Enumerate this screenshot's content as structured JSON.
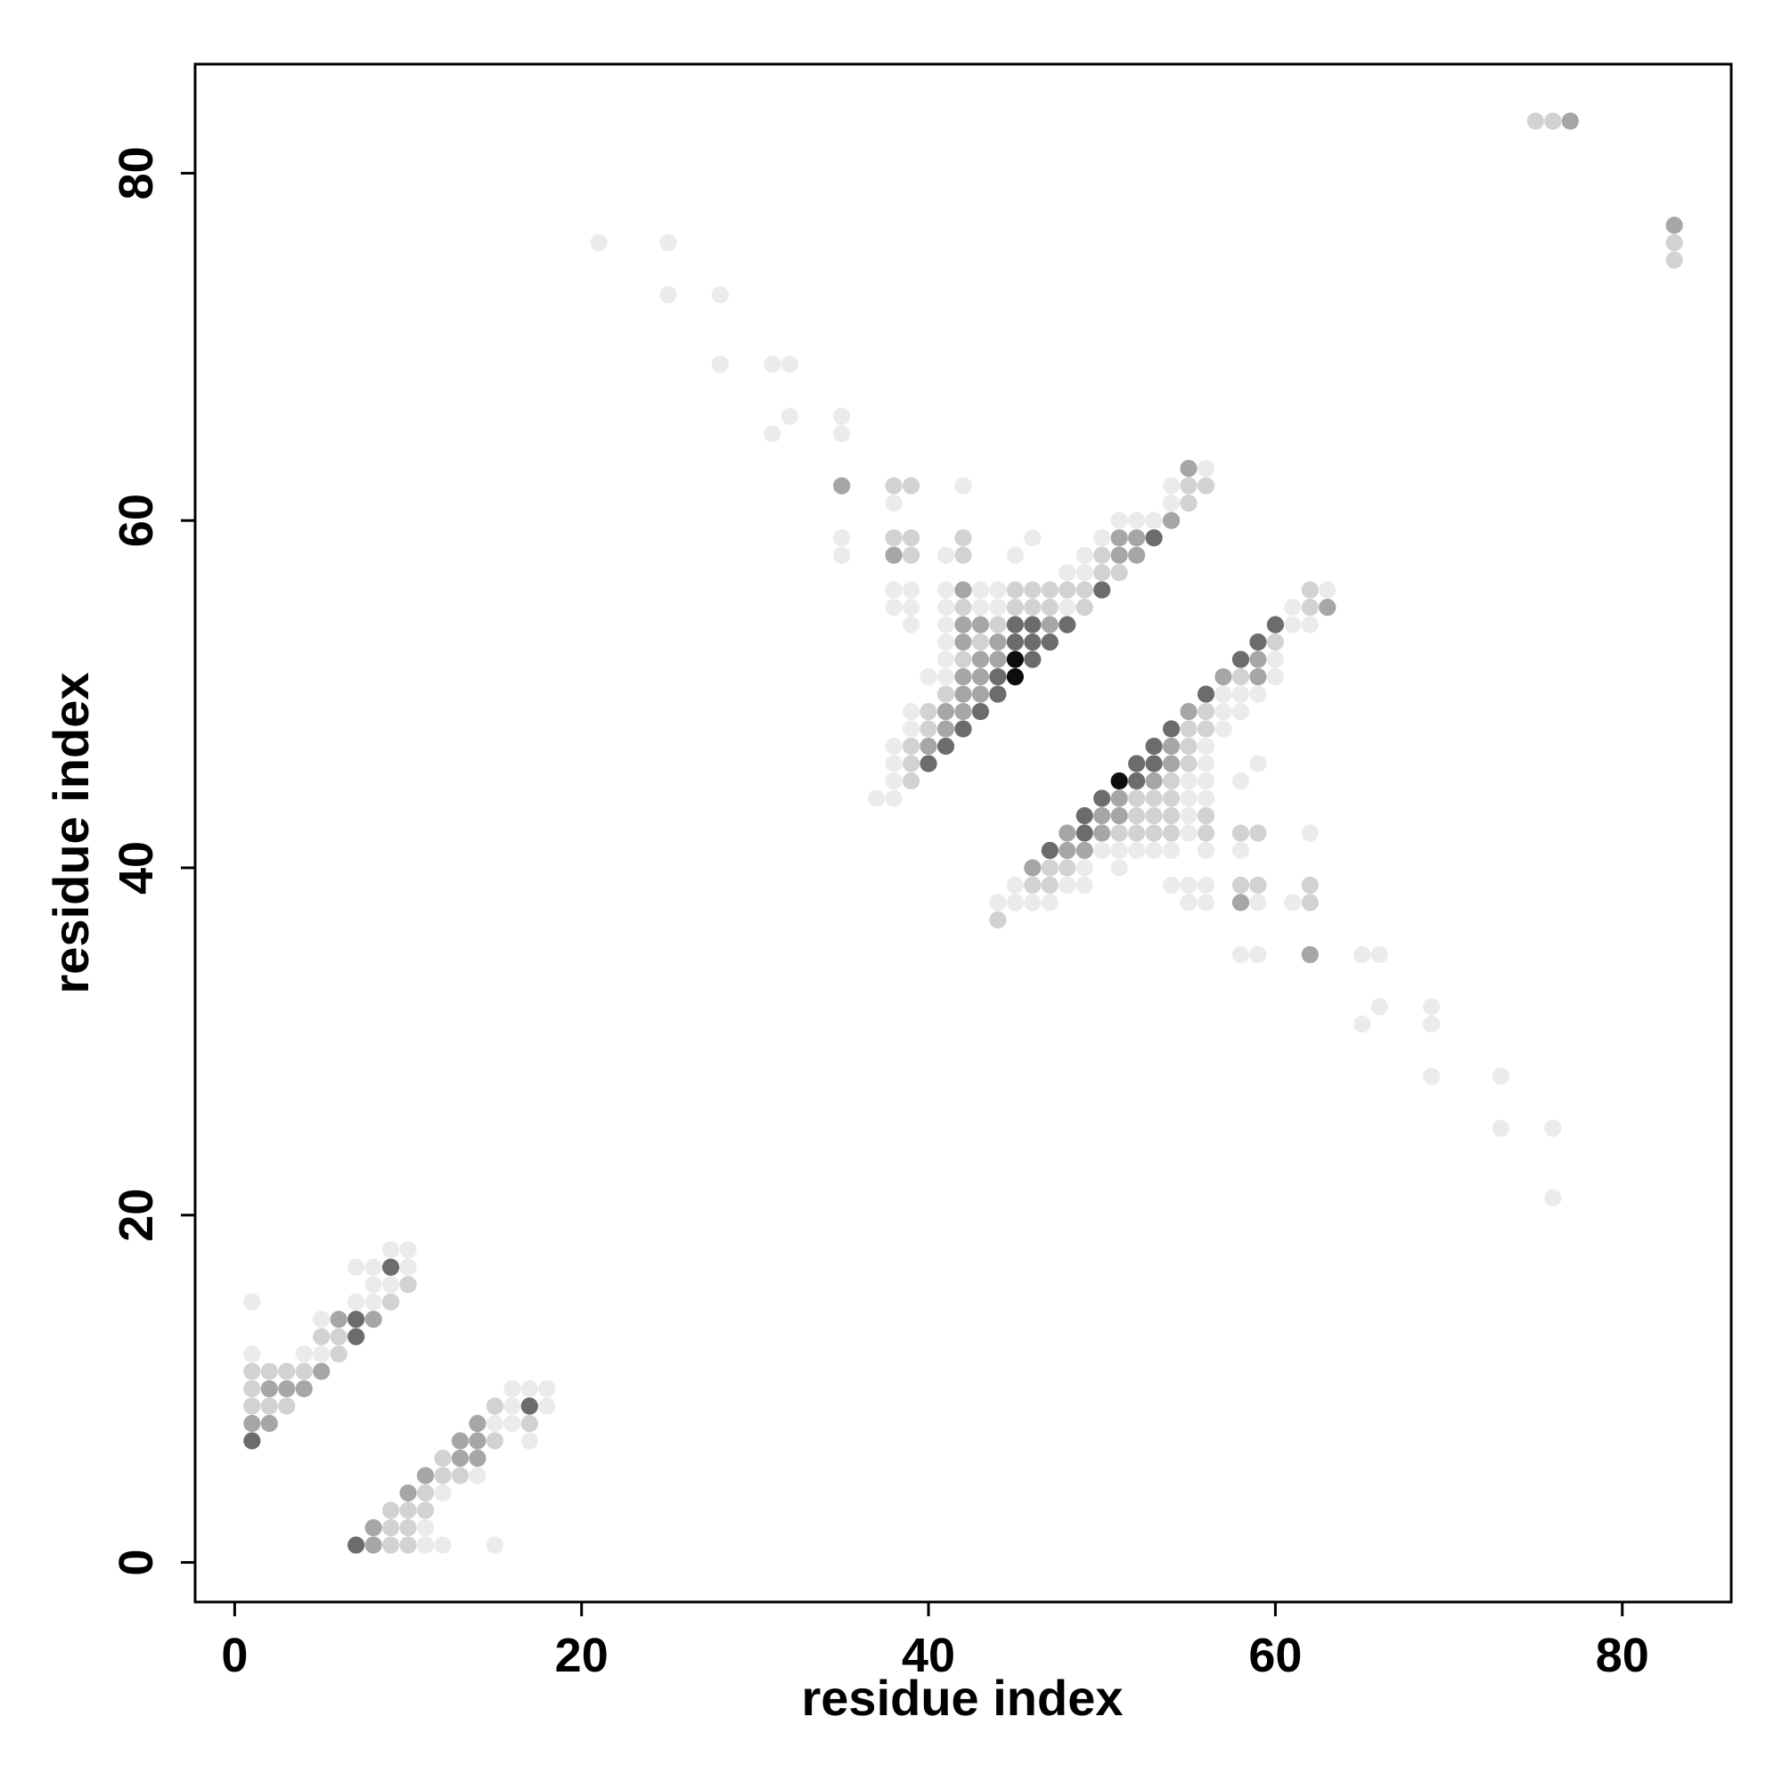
{
  "chart_data": {
    "type": "scatter",
    "x_label": "residue index",
    "y_label": "residue index",
    "xlim": [
      -2.28,
      86.28
    ],
    "ylim": [
      -2.28,
      86.28
    ],
    "xticks": [
      0,
      20,
      40,
      60,
      80
    ],
    "yticks": [
      0,
      20,
      40,
      60,
      80
    ],
    "series": [
      {
        "color": "#ebebeb",
        "x": [
          21,
          25,
          25,
          28,
          28,
          31,
          32,
          31,
          32,
          35,
          35,
          35,
          35,
          76,
          76,
          73,
          73,
          69,
          69,
          69,
          65,
          66,
          65,
          66,
          1,
          1,
          4,
          5,
          5,
          7,
          8,
          8,
          9,
          7,
          8,
          10,
          9,
          10,
          11,
          12,
          15,
          11,
          12,
          14,
          15,
          16,
          17,
          16,
          18,
          16,
          17,
          18,
          56,
          42,
          54,
          38,
          54,
          51,
          52,
          53,
          46,
          50,
          41,
          45,
          49,
          48,
          49,
          38,
          39,
          41,
          43,
          44,
          38,
          39,
          41,
          43,
          44,
          48,
          39,
          41,
          41,
          41,
          40,
          41,
          39,
          39,
          38,
          38,
          38,
          37,
          38,
          63,
          61,
          61,
          62,
          60,
          60,
          57,
          58,
          59,
          57,
          58,
          57,
          56,
          56,
          59,
          55,
          56,
          58,
          55,
          56,
          55,
          55,
          62,
          50,
          51,
          52,
          53,
          54,
          56,
          58,
          49,
          51,
          45,
          48,
          49,
          54,
          55,
          56,
          44,
          45,
          46,
          47,
          55,
          56,
          59,
          61,
          58,
          59
        ],
        "y": [
          76,
          76,
          73,
          73,
          69,
          69,
          69,
          65,
          66,
          66,
          65,
          59,
          58,
          25,
          21,
          25,
          28,
          28,
          31,
          32,
          31,
          32,
          35,
          35,
          15,
          12,
          12,
          12,
          14,
          15,
          15,
          16,
          16,
          17,
          17,
          17,
          18,
          18,
          1,
          1,
          1,
          2,
          4,
          5,
          8,
          8,
          7,
          9,
          9,
          10,
          10,
          10,
          63,
          62,
          62,
          61,
          61,
          60,
          60,
          60,
          59,
          59,
          58,
          58,
          58,
          57,
          57,
          56,
          56,
          56,
          56,
          56,
          55,
          55,
          55,
          55,
          55,
          55,
          54,
          54,
          53,
          52,
          51,
          51,
          49,
          48,
          47,
          46,
          45,
          44,
          44,
          56,
          55,
          54,
          54,
          52,
          51,
          50,
          50,
          50,
          49,
          49,
          48,
          47,
          46,
          46,
          45,
          45,
          45,
          44,
          44,
          43,
          42,
          42,
          41,
          41,
          41,
          41,
          41,
          41,
          41,
          40,
          40,
          39,
          39,
          39,
          39,
          39,
          39,
          38,
          38,
          38,
          38,
          38,
          38,
          38,
          38,
          35,
          35
        ]
      },
      {
        "color": "#d2d2d2",
        "x": [
          75,
          76,
          83,
          83,
          1,
          2,
          3,
          4,
          1,
          1,
          2,
          3,
          6,
          5,
          6,
          9,
          10,
          9,
          10,
          9,
          10,
          9,
          10,
          11,
          11,
          12,
          13,
          12,
          15,
          17,
          15,
          38,
          39,
          55,
          56,
          55,
          38,
          39,
          42,
          39,
          42,
          50,
          50,
          51,
          45,
          46,
          47,
          48,
          49,
          42,
          45,
          46,
          47,
          49,
          44,
          43,
          42,
          41,
          40,
          40,
          39,
          39,
          39,
          62,
          62,
          60,
          58,
          56,
          55,
          56,
          55,
          55,
          54,
          52,
          53,
          54,
          52,
          53,
          54,
          56,
          51,
          52,
          53,
          54,
          56,
          58,
          59,
          47,
          48,
          46,
          47,
          58,
          59,
          62,
          62,
          44
        ],
        "y": [
          83,
          83,
          76,
          75,
          11,
          11,
          11,
          11,
          10,
          9,
          9,
          9,
          12,
          13,
          13,
          15,
          16,
          1,
          1,
          2,
          2,
          3,
          3,
          3,
          4,
          5,
          5,
          6,
          7,
          8,
          9,
          62,
          62,
          62,
          62,
          61,
          59,
          59,
          59,
          58,
          58,
          58,
          57,
          57,
          56,
          56,
          56,
          56,
          56,
          55,
          55,
          55,
          55,
          55,
          54,
          53,
          52,
          50,
          49,
          48,
          47,
          46,
          45,
          56,
          55,
          53,
          51,
          49,
          48,
          48,
          47,
          46,
          45,
          44,
          44,
          44,
          43,
          43,
          43,
          43,
          42,
          42,
          42,
          42,
          42,
          42,
          42,
          40,
          40,
          39,
          39,
          39,
          39,
          39,
          38,
          37
        ]
      },
      {
        "color": "#a6a6a6",
        "x": [
          83,
          77,
          35,
          62,
          2,
          3,
          4,
          1,
          2,
          5,
          6,
          8,
          8,
          8,
          10,
          11,
          13,
          14,
          13,
          14,
          14,
          55,
          54,
          51,
          52,
          38,
          51,
          52,
          42,
          42,
          43,
          47,
          42,
          44,
          43,
          44,
          42,
          43,
          42,
          43,
          41,
          42,
          41,
          40,
          63,
          59,
          57,
          59,
          55,
          54,
          54,
          53,
          51,
          50,
          51,
          48,
          50,
          48,
          49,
          46,
          58
        ],
        "y": [
          77,
          83,
          62,
          35,
          10,
          10,
          10,
          8,
          8,
          11,
          14,
          14,
          1,
          2,
          4,
          5,
          6,
          6,
          7,
          7,
          8,
          63,
          60,
          59,
          59,
          58,
          58,
          58,
          56,
          54,
          54,
          54,
          53,
          53,
          52,
          52,
          51,
          51,
          50,
          50,
          49,
          49,
          48,
          47,
          55,
          52,
          51,
          51,
          49,
          47,
          46,
          45,
          44,
          43,
          43,
          42,
          42,
          41,
          41,
          40,
          38
        ]
      },
      {
        "color": "#6c6c6c",
        "x": [
          1,
          7,
          7,
          9,
          7,
          17,
          53,
          50,
          45,
          46,
          48,
          45,
          46,
          47,
          46,
          44,
          44,
          43,
          42,
          41,
          40,
          60,
          59,
          58,
          56,
          54,
          53,
          52,
          53,
          52,
          50,
          49,
          49,
          47
        ],
        "y": [
          7,
          13,
          14,
          17,
          1,
          9,
          59,
          56,
          54,
          54,
          54,
          53,
          53,
          53,
          52,
          51,
          50,
          49,
          48,
          47,
          46,
          54,
          53,
          52,
          50,
          48,
          47,
          46,
          46,
          45,
          44,
          43,
          42,
          41
        ]
      },
      {
        "color": "#0d0d0d",
        "x": [
          45,
          45,
          51
        ],
        "y": [
          52,
          51,
          45
        ]
      }
    ]
  }
}
